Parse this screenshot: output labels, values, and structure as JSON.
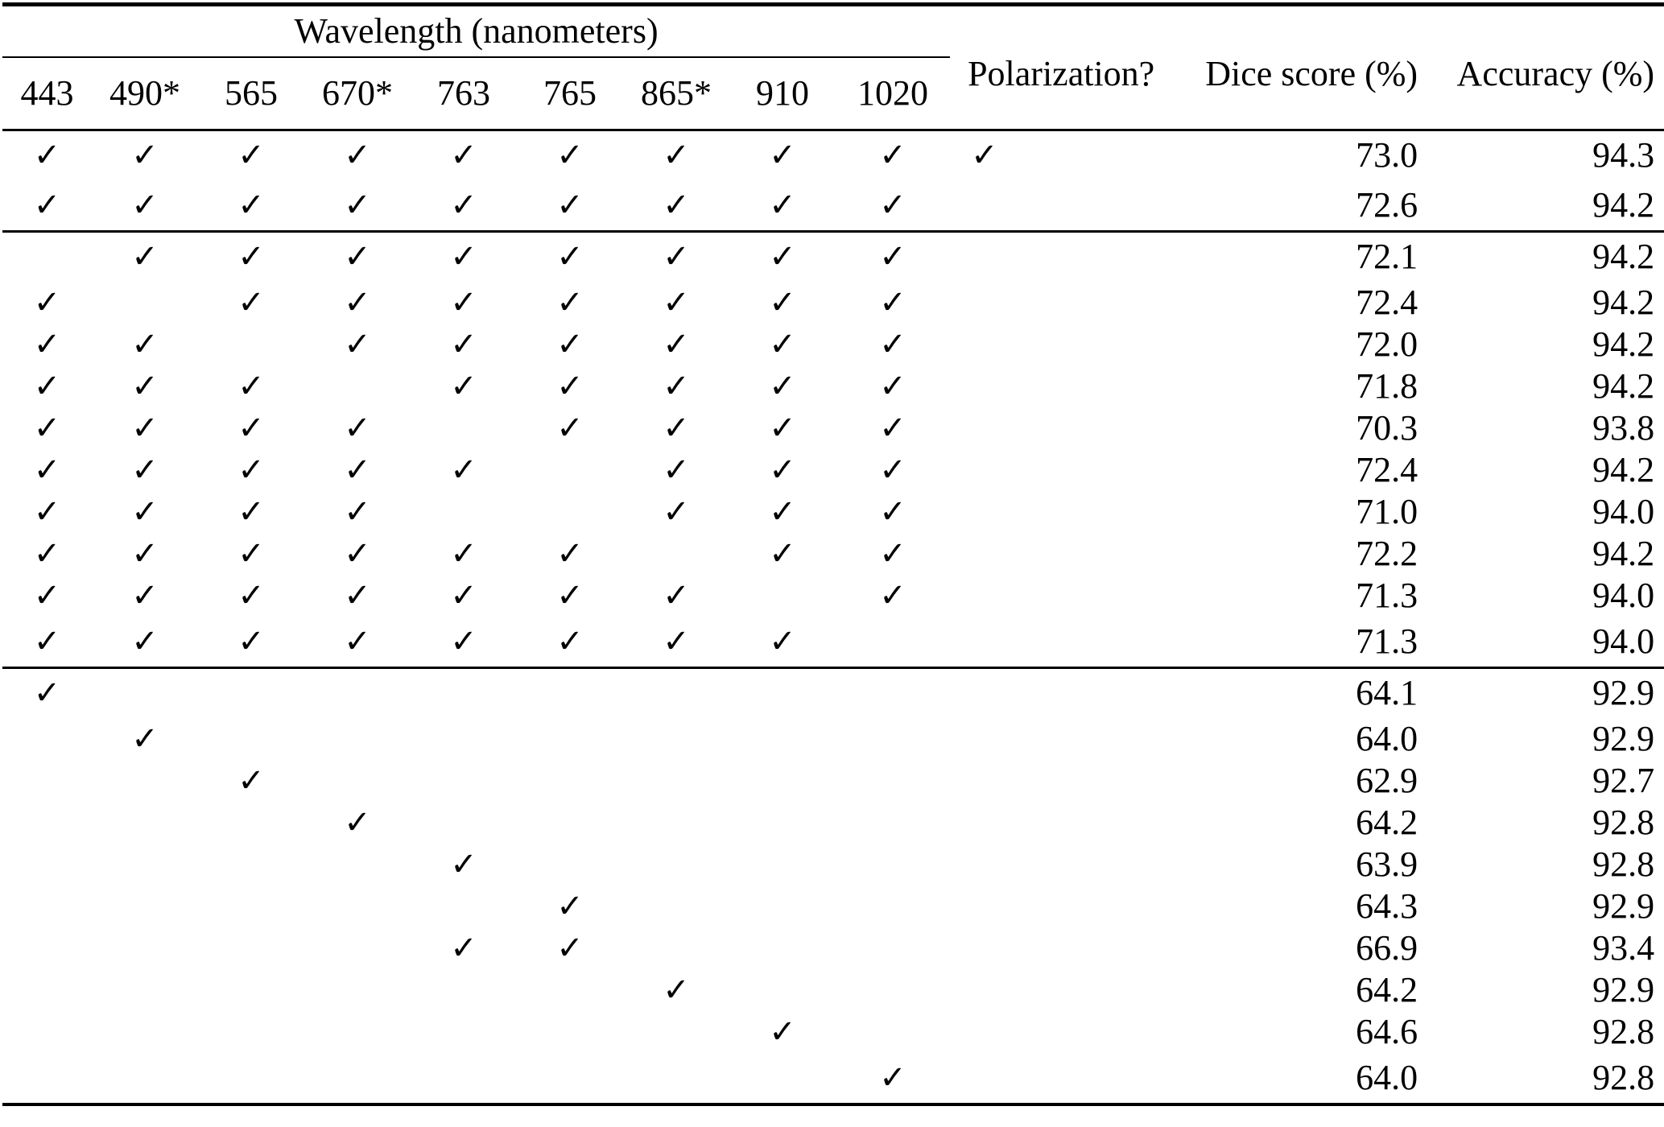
{
  "table": {
    "group_header": "Wavelength (nanometers)",
    "headers": {
      "polarization": "Polarization?",
      "dice": "Dice score (%)",
      "accuracy": "Accuracy (%)"
    },
    "wavelengths": [
      "443",
      "490*",
      "565",
      "670*",
      "763",
      "765",
      "865*",
      "910",
      "1020"
    ],
    "check_glyph": "✓",
    "groups": [
      {
        "rows": [
          {
            "checks": [
              1,
              1,
              1,
              1,
              1,
              1,
              1,
              1,
              1
            ],
            "polarization": 1,
            "dice": "73.0",
            "accuracy": "94.3"
          },
          {
            "checks": [
              1,
              1,
              1,
              1,
              1,
              1,
              1,
              1,
              1
            ],
            "polarization": 0,
            "dice": "72.6",
            "accuracy": "94.2"
          }
        ]
      },
      {
        "rows": [
          {
            "checks": [
              0,
              1,
              1,
              1,
              1,
              1,
              1,
              1,
              1
            ],
            "polarization": 0,
            "dice": "72.1",
            "accuracy": "94.2"
          },
          {
            "checks": [
              1,
              0,
              1,
              1,
              1,
              1,
              1,
              1,
              1
            ],
            "polarization": 0,
            "dice": "72.4",
            "accuracy": "94.2"
          },
          {
            "checks": [
              1,
              1,
              0,
              1,
              1,
              1,
              1,
              1,
              1
            ],
            "polarization": 0,
            "dice": "72.0",
            "accuracy": "94.2"
          },
          {
            "checks": [
              1,
              1,
              1,
              0,
              1,
              1,
              1,
              1,
              1
            ],
            "polarization": 0,
            "dice": "71.8",
            "accuracy": "94.2"
          },
          {
            "checks": [
              1,
              1,
              1,
              1,
              0,
              1,
              1,
              1,
              1
            ],
            "polarization": 0,
            "dice": "70.3",
            "accuracy": "93.8"
          },
          {
            "checks": [
              1,
              1,
              1,
              1,
              1,
              0,
              1,
              1,
              1
            ],
            "polarization": 0,
            "dice": "72.4",
            "accuracy": "94.2"
          },
          {
            "checks": [
              1,
              1,
              1,
              1,
              0,
              0,
              1,
              1,
              1
            ],
            "polarization": 0,
            "dice": "71.0",
            "accuracy": "94.0"
          },
          {
            "checks": [
              1,
              1,
              1,
              1,
              1,
              1,
              0,
              1,
              1
            ],
            "polarization": 0,
            "dice": "72.2",
            "accuracy": "94.2"
          },
          {
            "checks": [
              1,
              1,
              1,
              1,
              1,
              1,
              1,
              0,
              1
            ],
            "polarization": 0,
            "dice": "71.3",
            "accuracy": "94.0"
          },
          {
            "checks": [
              1,
              1,
              1,
              1,
              1,
              1,
              1,
              1,
              0
            ],
            "polarization": 0,
            "dice": "71.3",
            "accuracy": "94.0"
          }
        ]
      },
      {
        "rows": [
          {
            "checks": [
              1,
              0,
              0,
              0,
              0,
              0,
              0,
              0,
              0
            ],
            "polarization": 0,
            "dice": "64.1",
            "accuracy": "92.9"
          },
          {
            "checks": [
              0,
              1,
              0,
              0,
              0,
              0,
              0,
              0,
              0
            ],
            "polarization": 0,
            "dice": "64.0",
            "accuracy": "92.9"
          },
          {
            "checks": [
              0,
              0,
              1,
              0,
              0,
              0,
              0,
              0,
              0
            ],
            "polarization": 0,
            "dice": "62.9",
            "accuracy": "92.7"
          },
          {
            "checks": [
              0,
              0,
              0,
              1,
              0,
              0,
              0,
              0,
              0
            ],
            "polarization": 0,
            "dice": "64.2",
            "accuracy": "92.8"
          },
          {
            "checks": [
              0,
              0,
              0,
              0,
              1,
              0,
              0,
              0,
              0
            ],
            "polarization": 0,
            "dice": "63.9",
            "accuracy": "92.8"
          },
          {
            "checks": [
              0,
              0,
              0,
              0,
              0,
              1,
              0,
              0,
              0
            ],
            "polarization": 0,
            "dice": "64.3",
            "accuracy": "92.9"
          },
          {
            "checks": [
              0,
              0,
              0,
              0,
              1,
              1,
              0,
              0,
              0
            ],
            "polarization": 0,
            "dice": "66.9",
            "accuracy": "93.4"
          },
          {
            "checks": [
              0,
              0,
              0,
              0,
              0,
              0,
              1,
              0,
              0
            ],
            "polarization": 0,
            "dice": "64.2",
            "accuracy": "92.9"
          },
          {
            "checks": [
              0,
              0,
              0,
              0,
              0,
              0,
              0,
              1,
              0
            ],
            "polarization": 0,
            "dice": "64.6",
            "accuracy": "92.8"
          },
          {
            "checks": [
              0,
              0,
              0,
              0,
              0,
              0,
              0,
              0,
              1
            ],
            "polarization": 0,
            "dice": "64.0",
            "accuracy": "92.8"
          }
        ]
      }
    ]
  }
}
